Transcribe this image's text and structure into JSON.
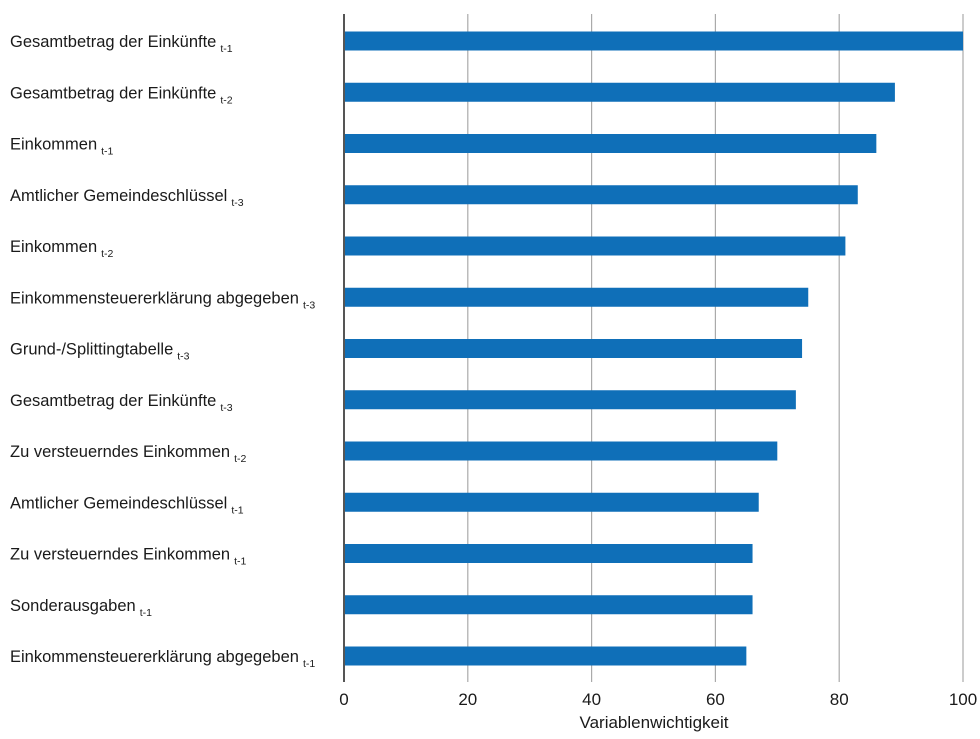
{
  "chart_data": {
    "type": "bar",
    "orientation": "horizontal",
    "categories": [
      {
        "label": "Gesamtbetrag der Einkünfte",
        "sub": "t-1"
      },
      {
        "label": "Gesamtbetrag der Einkünfte",
        "sub": "t-2"
      },
      {
        "label": "Einkommen",
        "sub": "t-1"
      },
      {
        "label": "Amtlicher Gemeindeschlüssel",
        "sub": "t-3"
      },
      {
        "label": "Einkommen",
        "sub": "t-2"
      },
      {
        "label": "Einkommensteuererklärung abgegeben",
        "sub": "t-3"
      },
      {
        "label": "Grund-/Splittingtabelle",
        "sub": "t-3"
      },
      {
        "label": "Gesamtbetrag der Einkünfte",
        "sub": "t-3"
      },
      {
        "label": "Zu versteuerndes Einkommen",
        "sub": "t-2"
      },
      {
        "label": "Amtlicher Gemeindeschlüssel",
        "sub": "t-1"
      },
      {
        "label": "Zu versteuerndes Einkommen",
        "sub": "t-1"
      },
      {
        "label": "Sonderausgaben",
        "sub": "t-1"
      },
      {
        "label": "Einkommensteuererklärung abgegeben",
        "sub": "t-1"
      }
    ],
    "values": [
      100,
      89,
      86,
      83,
      81,
      75,
      74,
      73,
      70,
      67,
      66,
      66,
      65
    ],
    "xlabel": "Variablenwichtigkeit",
    "xlim": [
      0,
      100
    ],
    "xticks": [
      0,
      20,
      40,
      60,
      80,
      100
    ],
    "grid": true,
    "bar_color": "#0f6fb8",
    "grid_color": "#aaaaaa",
    "axis_color": "#555555"
  }
}
